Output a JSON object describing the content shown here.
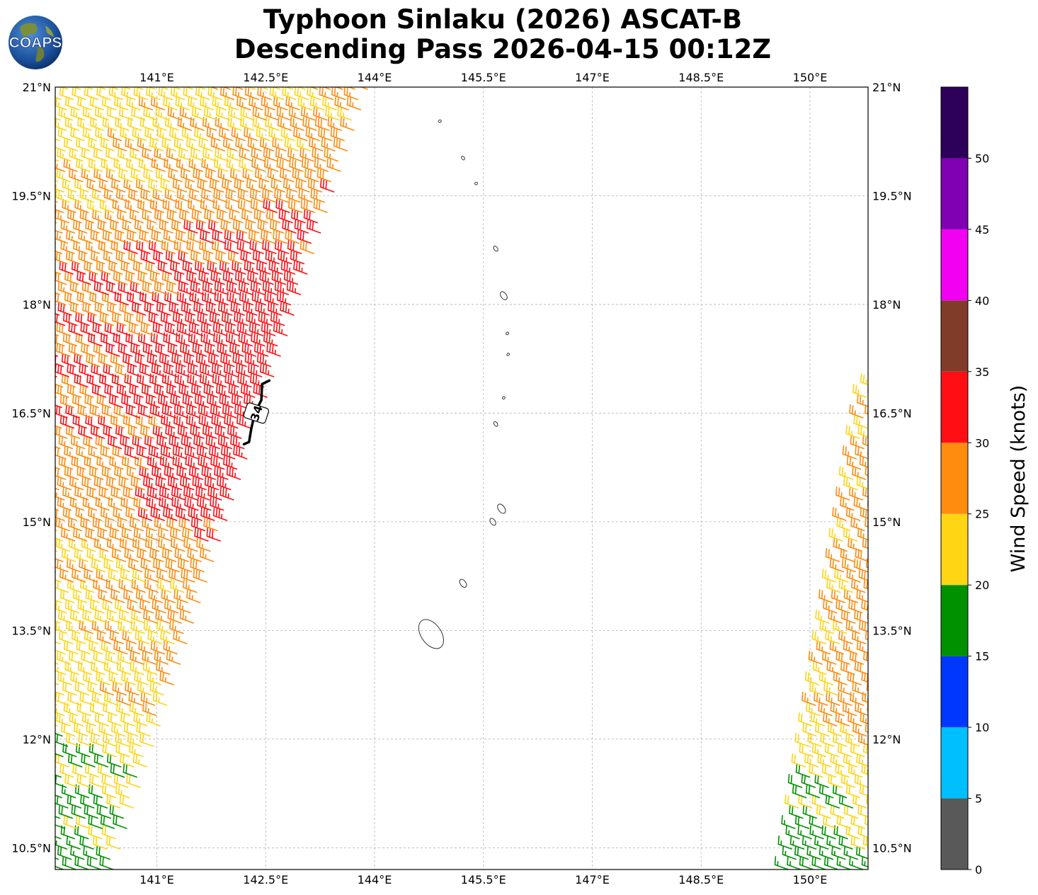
{
  "header": {
    "title_line_1": "Typhoon Sinlaku (2026) ASCAT-B",
    "title_line_2": "Descending Pass 2026-04-15 00:12Z",
    "logo_text": "COAPS"
  },
  "chart_data": {
    "type": "wind-barb-map",
    "title": "Typhoon Sinlaku (2026) ASCAT-B Descending Pass 2026-04-15 00:12Z",
    "x_axis": {
      "ticks": [
        141,
        142.5,
        144,
        145.5,
        147,
        148.5,
        150
      ],
      "tick_labels": [
        "141°E",
        "142.5°E",
        "144°E",
        "145.5°E",
        "147°E",
        "148.5°E",
        "150°E"
      ],
      "xlim": [
        139.6,
        150.8
      ]
    },
    "y_axis": {
      "ticks": [
        10.5,
        12,
        13.5,
        15,
        16.5,
        18,
        19.5,
        21
      ],
      "tick_labels": [
        "10.5°N",
        "12°N",
        "13.5°N",
        "15°N",
        "16.5°N",
        "18°N",
        "19.5°N",
        "21°N"
      ],
      "ylim": [
        10.2,
        21
      ]
    },
    "grid": true,
    "wind_radius_label": "34",
    "swaths": [
      {
        "name": "west-swath",
        "edge_lats": [
          10.2,
          21
        ],
        "edge_west_lons": [
          139.2,
          139.6
        ],
        "edge_east_lons": [
          140.4,
          143.9
        ],
        "knots_by_lat": [
          [
            10.2,
            18
          ],
          [
            11.6,
            20
          ],
          [
            12.3,
            23
          ],
          [
            14.0,
            25
          ],
          [
            15.6,
            29
          ],
          [
            17.0,
            32
          ],
          [
            18.6,
            30
          ],
          [
            20.0,
            25
          ],
          [
            21.0,
            24
          ]
        ],
        "core": {
          "lat_range": [
            15.0,
            18.5
          ],
          "east_fraction": [
            0.55,
            1.0
          ],
          "knots": 33
        }
      },
      {
        "name": "east-swath",
        "edge_lats": [
          10.2,
          16.9
        ],
        "edge_west_lons": [
          149.7,
          150.8
        ],
        "edge_east_lons": [
          150.9,
          151.4
        ],
        "knots_by_lat": [
          [
            10.2,
            17
          ],
          [
            10.9,
            20
          ],
          [
            11.8,
            23
          ],
          [
            12.6,
            27
          ],
          [
            16.9,
            27
          ]
        ]
      }
    ],
    "islands": [
      {
        "name": "Farallon de Pajaros",
        "lon": 144.9,
        "lat": 20.53,
        "size": 0.02
      },
      {
        "name": "Maug",
        "lon": 145.22,
        "lat": 20.02,
        "size": 0.03
      },
      {
        "name": "Asuncion",
        "lon": 145.4,
        "lat": 19.67,
        "size": 0.02
      },
      {
        "name": "Agrihan",
        "lon": 145.67,
        "lat": 18.77,
        "size": 0.045
      },
      {
        "name": "Pagan",
        "lon": 145.78,
        "lat": 18.12,
        "size": 0.07
      },
      {
        "name": "Alamagan",
        "lon": 145.83,
        "lat": 17.6,
        "size": 0.02
      },
      {
        "name": "Guguan",
        "lon": 145.84,
        "lat": 17.31,
        "size": 0.01
      },
      {
        "name": "Sarigan",
        "lon": 145.78,
        "lat": 16.71,
        "size": 0.01
      },
      {
        "name": "Anatahan",
        "lon": 145.67,
        "lat": 16.35,
        "size": 0.04
      },
      {
        "name": "Saipan",
        "lon": 145.75,
        "lat": 15.18,
        "size": 0.08
      },
      {
        "name": "Tinian",
        "lon": 145.63,
        "lat": 15.0,
        "size": 0.06
      },
      {
        "name": "Rota",
        "lon": 145.22,
        "lat": 14.15,
        "size": 0.07
      },
      {
        "name": "Guam",
        "lon": 144.78,
        "lat": 13.45,
        "size": 0.25
      }
    ]
  },
  "colorbar": {
    "label": "Wind Speed (knots)",
    "ticks": [
      "0",
      "5",
      "10",
      "15",
      "20",
      "25",
      "30",
      "35",
      "40",
      "45",
      "50"
    ],
    "bins": [
      {
        "min": 0,
        "max": 5,
        "color": "#595959"
      },
      {
        "min": 5,
        "max": 10,
        "color": "#00bfff"
      },
      {
        "min": 10,
        "max": 15,
        "color": "#0037ff"
      },
      {
        "min": 15,
        "max": 20,
        "color": "#009100"
      },
      {
        "min": 20,
        "max": 25,
        "color": "#ffd514"
      },
      {
        "min": 25,
        "max": 30,
        "color": "#ff8c0f"
      },
      {
        "min": 30,
        "max": 35,
        "color": "#ff0f14"
      },
      {
        "min": 35,
        "max": 40,
        "color": "#813b29"
      },
      {
        "min": 40,
        "max": 45,
        "color": "#f200f2"
      },
      {
        "min": 45,
        "max": 50,
        "color": "#8000b3"
      },
      {
        "min": 50,
        "max": 55,
        "color": "#2d005a"
      }
    ]
  }
}
